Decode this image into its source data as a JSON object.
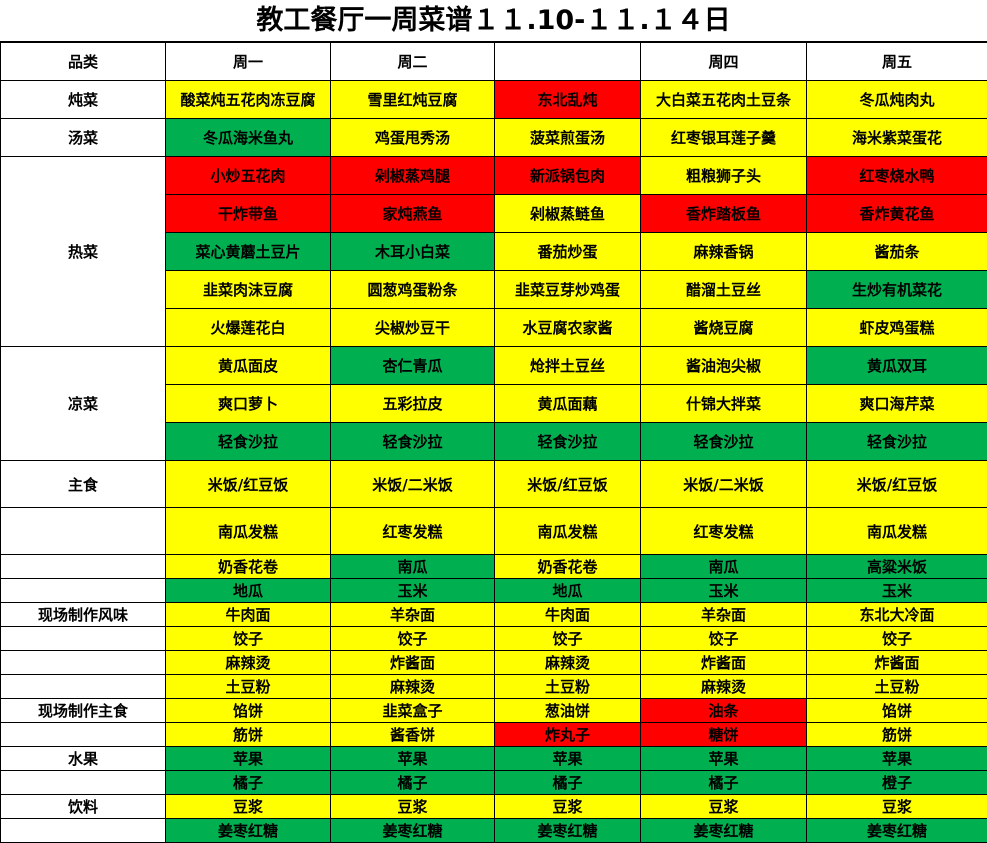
{
  "title": "教工餐厅一周菜谱１１.10-１１.１４日",
  "colors": {
    "y": "#FFFF00",
    "g": "#00B050",
    "r": "#FF0000"
  },
  "header": [
    "品类",
    "周一",
    "周二",
    "",
    "周四",
    "周五"
  ],
  "rows": [
    {
      "category": "炖菜",
      "span": 1,
      "cells": [
        [
          "酸菜炖五花肉冻豆腐",
          "y"
        ],
        [
          "雪里红炖豆腐",
          "y"
        ],
        [
          "东北乱炖",
          "r"
        ],
        [
          "大白菜五花肉土豆条",
          "y"
        ],
        [
          "冬瓜炖肉丸",
          "y"
        ]
      ]
    },
    {
      "category": "汤菜",
      "span": 1,
      "cells": [
        [
          "冬瓜海米鱼丸",
          "g"
        ],
        [
          "鸡蛋甩秀汤",
          "y"
        ],
        [
          "菠菜煎蛋汤",
          "y"
        ],
        [
          "红枣银耳莲子羹",
          "y"
        ],
        [
          "海米紫菜蛋花",
          "y"
        ]
      ]
    },
    {
      "category": "热菜",
      "span": 5,
      "cells": [
        [
          "小炒五花肉",
          "r"
        ],
        [
          "剁椒蒸鸡腿",
          "r"
        ],
        [
          "新派锅包肉",
          "r"
        ],
        [
          "粗粮狮子头",
          "y"
        ],
        [
          "红枣烧水鸭",
          "r"
        ]
      ]
    },
    {
      "cells": [
        [
          "干炸带鱼",
          "r"
        ],
        [
          "家炖燕鱼",
          "r"
        ],
        [
          "剁椒蒸鲢鱼",
          "y"
        ],
        [
          "香炸踏板鱼",
          "r"
        ],
        [
          "香炸黄花鱼",
          "r"
        ]
      ]
    },
    {
      "cells": [
        [
          "菜心黄蘑土豆片",
          "g"
        ],
        [
          "木耳小白菜",
          "g"
        ],
        [
          "番茄炒蛋",
          "y"
        ],
        [
          "麻辣香锅",
          "y"
        ],
        [
          "酱茄条",
          "y"
        ]
      ]
    },
    {
      "cells": [
        [
          "韭菜肉沫豆腐",
          "y"
        ],
        [
          "圆葱鸡蛋粉条",
          "y"
        ],
        [
          "韭菜豆芽炒鸡蛋",
          "y"
        ],
        [
          "醋溜土豆丝",
          "y"
        ],
        [
          "生炒有机菜花",
          "g"
        ]
      ]
    },
    {
      "cells": [
        [
          "火爆莲花白",
          "y"
        ],
        [
          "尖椒炒豆干",
          "y"
        ],
        [
          "水豆腐农家酱",
          "y"
        ],
        [
          "酱烧豆腐",
          "y"
        ],
        [
          "虾皮鸡蛋糕",
          "y"
        ]
      ]
    },
    {
      "category": "凉菜",
      "span": 3,
      "cells": [
        [
          "黄瓜面皮",
          "y"
        ],
        [
          "杏仁青瓜",
          "g"
        ],
        [
          "炝拌土豆丝",
          "y"
        ],
        [
          "酱油泡尖椒",
          "y"
        ],
        [
          "黄瓜双耳",
          "g"
        ]
      ]
    },
    {
      "cells": [
        [
          "爽口萝卜",
          "y"
        ],
        [
          "五彩拉皮",
          "y"
        ],
        [
          "黄瓜面藕",
          "y"
        ],
        [
          "什锦大拌菜",
          "y"
        ],
        [
          "爽口海芹菜",
          "y"
        ]
      ]
    },
    {
      "cells": [
        [
          "轻食沙拉",
          "g"
        ],
        [
          "轻食沙拉",
          "g"
        ],
        [
          "轻食沙拉",
          "g"
        ],
        [
          "轻食沙拉",
          "g"
        ],
        [
          "轻食沙拉",
          "g"
        ]
      ]
    },
    {
      "category": "主食",
      "span": 1,
      "cells": [
        [
          "米饭/红豆饭",
          "y"
        ],
        [
          "米饭/二米饭",
          "y"
        ],
        [
          "米饭/红豆饭",
          "y"
        ],
        [
          "米饭/二米饭",
          "y"
        ],
        [
          "米饭/红豆饭",
          "y"
        ]
      ]
    },
    {
      "category": "",
      "span": 1,
      "cells": [
        [
          "南瓜发糕",
          "y"
        ],
        [
          "红枣发糕",
          "y"
        ],
        [
          "南瓜发糕",
          "y"
        ],
        [
          "红枣发糕",
          "y"
        ],
        [
          "南瓜发糕",
          "y"
        ]
      ]
    },
    {
      "category": "",
      "span": 1,
      "cells": [
        [
          "奶香花卷",
          "y"
        ],
        [
          "南瓜",
          "g"
        ],
        [
          "奶香花卷",
          "y"
        ],
        [
          "南瓜",
          "g"
        ],
        [
          "高粱米饭",
          "g"
        ]
      ]
    },
    {
      "category": "",
      "span": 1,
      "cells": [
        [
          "地瓜",
          "g"
        ],
        [
          "玉米",
          "g"
        ],
        [
          "地瓜",
          "g"
        ],
        [
          "玉米",
          "g"
        ],
        [
          "玉米",
          "g"
        ]
      ]
    },
    {
      "category": "现场制作风味",
      "span": 1,
      "cells": [
        [
          "牛肉面",
          "y"
        ],
        [
          "羊杂面",
          "y"
        ],
        [
          "牛肉面",
          "y"
        ],
        [
          "羊杂面",
          "y"
        ],
        [
          "东北大冷面",
          "y"
        ]
      ]
    },
    {
      "category": "",
      "span": 1,
      "cells": [
        [
          "饺子",
          "y"
        ],
        [
          "饺子",
          "y"
        ],
        [
          "饺子",
          "y"
        ],
        [
          "饺子",
          "y"
        ],
        [
          "饺子",
          "y"
        ]
      ]
    },
    {
      "category": "",
      "span": 1,
      "cells": [
        [
          "麻辣烫",
          "y"
        ],
        [
          "炸酱面",
          "y"
        ],
        [
          "麻辣烫",
          "y"
        ],
        [
          "炸酱面",
          "y"
        ],
        [
          "炸酱面",
          "y"
        ]
      ]
    },
    {
      "category": "",
      "span": 1,
      "cells": [
        [
          "土豆粉",
          "y"
        ],
        [
          "麻辣烫",
          "y"
        ],
        [
          "土豆粉",
          "y"
        ],
        [
          "麻辣烫",
          "y"
        ],
        [
          "土豆粉",
          "y"
        ]
      ]
    },
    {
      "category": "现场制作主食",
      "span": 1,
      "cells": [
        [
          "馅饼",
          "y"
        ],
        [
          "韭菜盒子",
          "y"
        ],
        [
          "葱油饼",
          "y"
        ],
        [
          "油条",
          "r"
        ],
        [
          "馅饼",
          "y"
        ]
      ]
    },
    {
      "category": "",
      "span": 1,
      "cells": [
        [
          "筋饼",
          "y"
        ],
        [
          "酱香饼",
          "y"
        ],
        [
          "炸丸子",
          "r"
        ],
        [
          "糖饼",
          "r"
        ],
        [
          "筋饼",
          "y"
        ]
      ]
    },
    {
      "category": "水果",
      "span": 1,
      "cells": [
        [
          "苹果",
          "g"
        ],
        [
          "苹果",
          "g"
        ],
        [
          "苹果",
          "g"
        ],
        [
          "苹果",
          "g"
        ],
        [
          "苹果",
          "g"
        ]
      ]
    },
    {
      "category": "",
      "span": 1,
      "cells": [
        [
          "橘子",
          "g"
        ],
        [
          "橘子",
          "g"
        ],
        [
          "橘子",
          "g"
        ],
        [
          "橘子",
          "g"
        ],
        [
          "橙子",
          "g"
        ]
      ]
    },
    {
      "category": "饮料",
      "span": 1,
      "cells": [
        [
          "豆浆",
          "y"
        ],
        [
          "豆浆",
          "y"
        ],
        [
          "豆浆",
          "y"
        ],
        [
          "豆浆",
          "y"
        ],
        [
          "豆浆",
          "y"
        ]
      ]
    },
    {
      "category": "",
      "span": 1,
      "cells": [
        [
          "姜枣红糖",
          "g"
        ],
        [
          "姜枣红糖",
          "g"
        ],
        [
          "姜枣红糖",
          "g"
        ],
        [
          "姜枣红糖",
          "g"
        ],
        [
          "姜枣红糖",
          "g"
        ]
      ]
    }
  ]
}
